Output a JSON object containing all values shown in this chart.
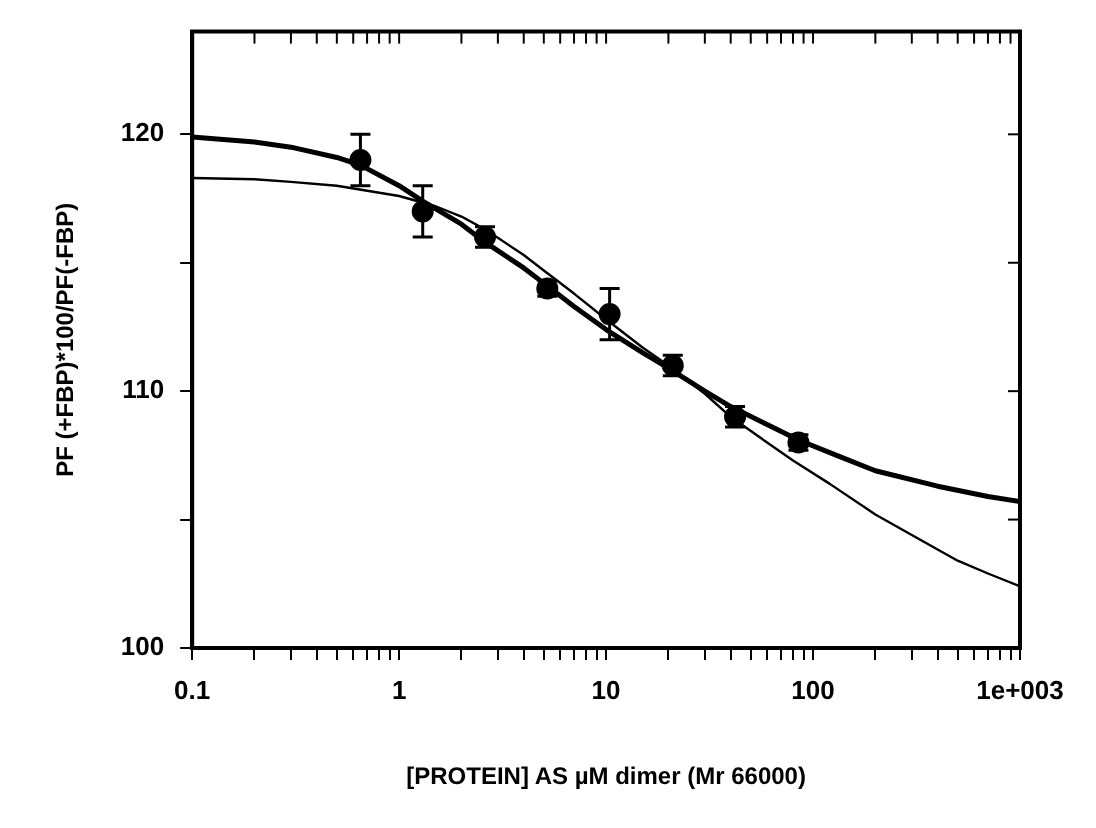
{
  "chart_data": {
    "type": "scatter",
    "xlabel": "[PROTEIN] AS µM dimer (Mr 66000)",
    "ylabel": "PF (+FBP)*100/PF(-FBP)",
    "log": "x",
    "grid": false,
    "legend": false,
    "marker": "circle",
    "xlim": [
      0.1,
      1000
    ],
    "ylim": [
      100,
      124
    ],
    "xticks": [
      0.1,
      {
        "value": 0.2,
        "label": null
      },
      {
        "value": 0.3,
        "label": null
      },
      {
        "value": 0.4,
        "label": null
      },
      {
        "value": 0.5,
        "label": null
      },
      {
        "value": 0.6,
        "label": null
      },
      {
        "value": 0.7,
        "label": null
      },
      {
        "value": 0.8,
        "label": null
      },
      {
        "value": 0.9,
        "label": null
      },
      1,
      {
        "value": 2,
        "label": null
      },
      {
        "value": 3,
        "label": null
      },
      {
        "value": 4,
        "label": null
      },
      {
        "value": 5,
        "label": null
      },
      {
        "value": 6,
        "label": null
      },
      {
        "value": 7,
        "label": null
      },
      {
        "value": 8,
        "label": null
      },
      {
        "value": 9,
        "label": null
      },
      10,
      {
        "value": 20,
        "label": null
      },
      {
        "value": 30,
        "label": null
      },
      {
        "value": 40,
        "label": null
      },
      {
        "value": 50,
        "label": null
      },
      {
        "value": 60,
        "label": null
      },
      {
        "value": 70,
        "label": null
      },
      {
        "value": 80,
        "label": null
      },
      {
        "value": 90,
        "label": null
      },
      100,
      {
        "value": 200,
        "label": null
      },
      {
        "value": 300,
        "label": null
      },
      {
        "value": 400,
        "label": null
      },
      {
        "value": 500,
        "label": null
      },
      {
        "value": 600,
        "label": null
      },
      {
        "value": 700,
        "label": null
      },
      {
        "value": 800,
        "label": null
      },
      {
        "value": 900,
        "label": null
      },
      {
        "value": 1000,
        "label": "1e+003"
      }
    ],
    "yticks": [
      100,
      {
        "value": 105,
        "label": null
      },
      110,
      {
        "value": 115,
        "label": null
      },
      120
    ],
    "series": [
      {
        "color": "#000000",
        "x": [
          0.65,
          1.3,
          2.6,
          5.2,
          10.4,
          21,
          42,
          85
        ],
        "values": [
          119,
          117,
          116,
          114,
          113,
          111,
          109,
          108
        ],
        "errors": [
          1,
          1,
          0.4,
          0.3,
          1,
          0.4,
          0.4,
          0.3
        ]
      },
      {
        "type": "line",
        "color": "#000000",
        "marker": "none",
        "line_style": "solid",
        "x": [
          0.1,
          0.2,
          0.3,
          0.5,
          0.65,
          1,
          1.3,
          2,
          2.6,
          4,
          5.2,
          7,
          10,
          15,
          20,
          30,
          40,
          60,
          85,
          130,
          200,
          400,
          700,
          1000
        ],
        "values": [
          119.9,
          119.7,
          119.5,
          119.1,
          118.8,
          118.0,
          117.4,
          116.5,
          115.8,
          114.8,
          114.1,
          113.3,
          112.4,
          111.5,
          110.9,
          110.0,
          109.4,
          108.7,
          108.1,
          107.5,
          106.9,
          106.3,
          105.9,
          105.7
        ]
      },
      {
        "type": "line",
        "color": "#000000",
        "marker": "none",
        "line_style": "solid",
        "x": [
          0.1,
          0.2,
          0.3,
          0.5,
          1,
          1.5,
          2,
          2.6,
          4,
          5,
          7,
          10,
          15,
          20,
          30,
          40,
          60,
          80,
          120,
          200,
          300,
          500,
          700,
          1000
        ],
        "values": [
          118.3,
          118.25,
          118.15,
          118.0,
          117.6,
          117.2,
          116.8,
          116.3,
          115.3,
          114.7,
          113.8,
          112.8,
          111.7,
          111.0,
          109.9,
          109.0,
          108.0,
          107.3,
          106.4,
          105.2,
          104.4,
          103.4,
          102.9,
          102.4
        ]
      }
    ]
  }
}
